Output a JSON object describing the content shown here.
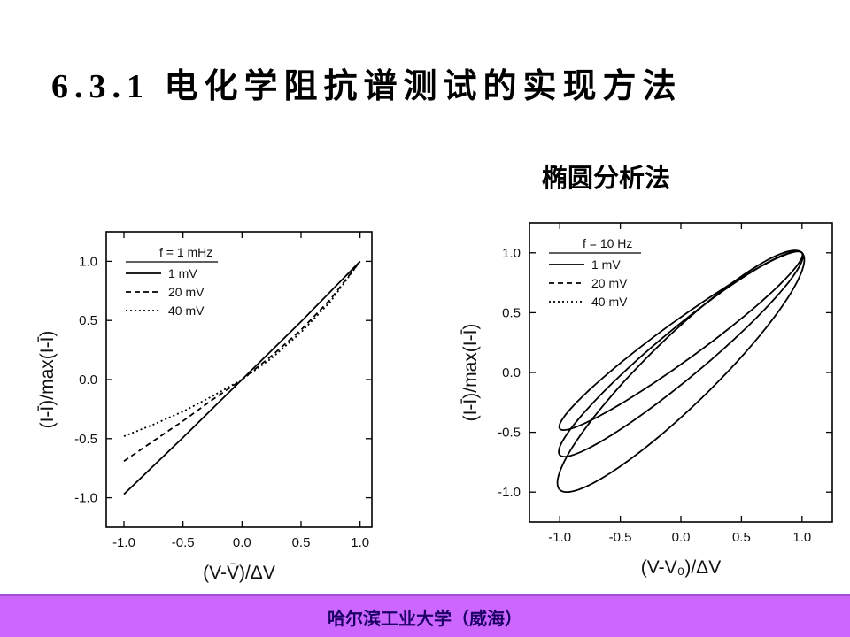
{
  "slide": {
    "title": "6.3.1 电化学阻抗谱测试的实现方法",
    "method_label": "椭圆分析法",
    "footer": "哈尔滨工业大学（威海）"
  },
  "colors": {
    "footer_band": "#cc66ff",
    "footer_text": "#1d0066",
    "curve": "#000000"
  },
  "chart_data": [
    {
      "type": "line",
      "id": "left",
      "xlim": [
        -1.15,
        1.1
      ],
      "ylim": [
        -1.25,
        1.25
      ],
      "xticks": [
        -1.0,
        -0.5,
        0.0,
        0.5,
        1.0
      ],
      "yticks": [
        -1.0,
        -0.5,
        0.0,
        0.5,
        1.0
      ],
      "xtick_labels": [
        "-1.0",
        "-0.5",
        "0.0",
        "0.5",
        "1.0"
      ],
      "ytick_labels": [
        "-1.0",
        "-0.5",
        "0.0",
        "0.5",
        "1.0"
      ],
      "xlabel": "(V-V̄)/ΔV",
      "ylabel": "(I-Ī)/max(I-Ī)",
      "legend_title": "f = 1 mHz",
      "series": [
        {
          "name": "1 mV",
          "style": "solid",
          "x": [
            -1.0,
            -0.5,
            0.0,
            0.5,
            1.0
          ],
          "y": [
            -0.97,
            -0.49,
            0.0,
            0.49,
            1.0
          ]
        },
        {
          "name": "20 mV",
          "style": "dashed",
          "x": [
            -1.0,
            -0.75,
            -0.5,
            -0.25,
            0.0,
            0.25,
            0.5,
            0.75,
            1.0
          ],
          "y": [
            -0.69,
            -0.52,
            -0.35,
            -0.17,
            0.0,
            0.2,
            0.42,
            0.68,
            1.0
          ]
        },
        {
          "name": "40 mV",
          "style": "dotted",
          "x": [
            -1.0,
            -0.75,
            -0.5,
            -0.25,
            0.0,
            0.25,
            0.5,
            0.75,
            1.0
          ],
          "y": [
            -0.48,
            -0.38,
            -0.27,
            -0.14,
            0.0,
            0.18,
            0.4,
            0.66,
            1.0
          ]
        }
      ]
    },
    {
      "type": "line",
      "id": "right",
      "xlim": [
        -1.25,
        1.25
      ],
      "ylim": [
        -1.25,
        1.25
      ],
      "xticks": [
        -1.0,
        -0.5,
        0.0,
        0.5,
        1.0
      ],
      "yticks": [
        -1.0,
        -0.5,
        0.0,
        0.5,
        1.0
      ],
      "xtick_labels": [
        "-1.0",
        "-0.5",
        "0.0",
        "0.5",
        "1.0"
      ],
      "ytick_labels": [
        "-1.0",
        "-0.5",
        "0.0",
        "0.5",
        "1.0"
      ],
      "xlabel": "(V-V₀)/ΔV",
      "ylabel": "(I-Ī)/max(I-Ī)",
      "legend_title": "f = 10 Hz",
      "series": [
        {
          "name": "1 mV",
          "style": "solid",
          "loop": true,
          "x_min": -1.0,
          "y_min": -0.98,
          "x_max": 1.0,
          "y_max": 1.0,
          "half_width": 0.28
        },
        {
          "name": "20 mV",
          "style": "solid",
          "loop": true,
          "x_min": -1.0,
          "y_min": -0.69,
          "x_max": 1.0,
          "y_max": 1.0,
          "half_width": 0.2
        },
        {
          "name": "40 mV",
          "style": "solid",
          "loop": true,
          "x_min": -1.0,
          "y_min": -0.47,
          "x_max": 1.0,
          "y_max": 1.0,
          "half_width": 0.16
        }
      ],
      "legend_styles": [
        "solid",
        "dashed",
        "dotted"
      ]
    }
  ]
}
